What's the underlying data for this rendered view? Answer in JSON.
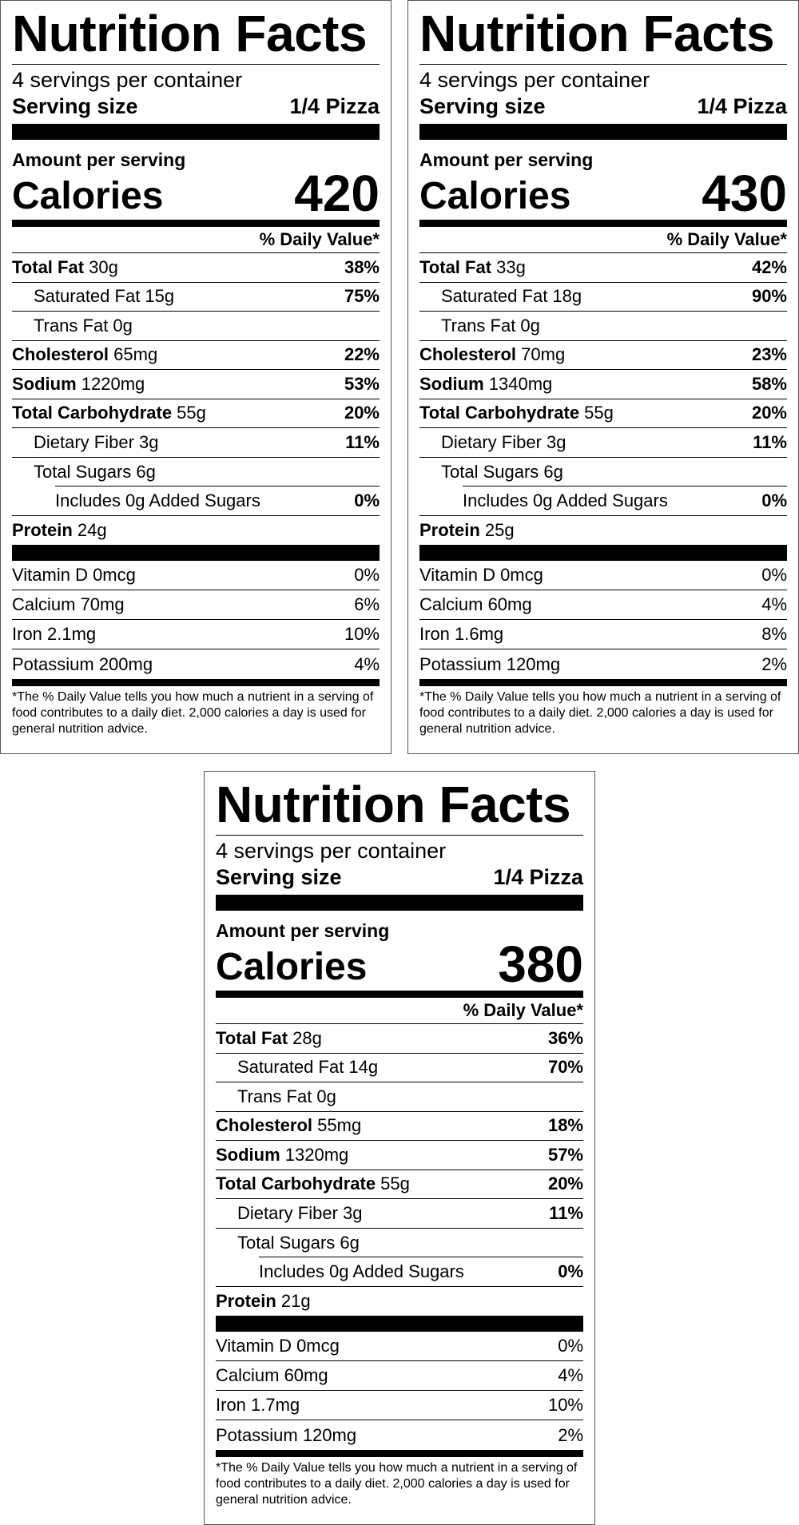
{
  "labels": [
    {
      "title": "Nutrition Facts",
      "servings_per_container": "4 servings per container",
      "serving_size_label": "Serving size",
      "serving_size_value": "1/4 Pizza",
      "amount_per_serving": "Amount per serving",
      "calories_label": "Calories",
      "calories_value": "420",
      "daily_value_header": "% Daily Value*",
      "nutrients": [
        {
          "name": "Total Fat",
          "amount": " 30g",
          "dv": "38%"
        },
        {
          "name": "Saturated Fat 15g",
          "dv": "75%"
        },
        {
          "name": "Trans Fat 0g",
          "dv": ""
        },
        {
          "name": "Cholesterol",
          "amount": " 65mg",
          "dv": "22%"
        },
        {
          "name": "Sodium",
          "amount": " 1220mg",
          "dv": "53%"
        },
        {
          "name": "Total Carbohydrate",
          "amount": " 55g",
          "dv": "20%"
        },
        {
          "name": "Dietary Fiber 3g",
          "dv": "11%"
        },
        {
          "name": "Total Sugars 6g",
          "dv": ""
        },
        {
          "name": "Includes 0g Added Sugars",
          "dv": "0%"
        },
        {
          "name": "Protein",
          "amount": " 24g",
          "dv": ""
        }
      ],
      "vitamins": [
        {
          "name": "Vitamin D 0mcg",
          "dv": "0%"
        },
        {
          "name": "Calcium 70mg",
          "dv": "6%"
        },
        {
          "name": "Iron 2.1mg",
          "dv": "10%"
        },
        {
          "name": "Potassium 200mg",
          "dv": "4%"
        }
      ],
      "footnote": "*The % Daily Value tells you how much a nutrient in a serving of food contributes to a daily diet. 2,000 calories a day is used for general nutrition advice."
    },
    {
      "title": "Nutrition Facts",
      "servings_per_container": "4 servings per container",
      "serving_size_label": "Serving size",
      "serving_size_value": "1/4 Pizza",
      "amount_per_serving": "Amount per serving",
      "calories_label": "Calories",
      "calories_value": "430",
      "daily_value_header": "% Daily Value*",
      "nutrients": [
        {
          "name": "Total Fat",
          "amount": " 33g",
          "dv": "42%"
        },
        {
          "name": "Saturated Fat 18g",
          "dv": "90%"
        },
        {
          "name": "Trans Fat 0g",
          "dv": ""
        },
        {
          "name": "Cholesterol",
          "amount": " 70mg",
          "dv": "23%"
        },
        {
          "name": "Sodium",
          "amount": " 1340mg",
          "dv": "58%"
        },
        {
          "name": "Total Carbohydrate",
          "amount": " 55g",
          "dv": "20%"
        },
        {
          "name": "Dietary Fiber 3g",
          "dv": "11%"
        },
        {
          "name": "Total Sugars 6g",
          "dv": ""
        },
        {
          "name": "Includes 0g Added Sugars",
          "dv": "0%"
        },
        {
          "name": "Protein",
          "amount": " 25g",
          "dv": ""
        }
      ],
      "vitamins": [
        {
          "name": "Vitamin D 0mcg",
          "dv": "0%"
        },
        {
          "name": "Calcium 60mg",
          "dv": "4%"
        },
        {
          "name": "Iron 1.6mg",
          "dv": "8%"
        },
        {
          "name": "Potassium 120mg",
          "dv": "2%"
        }
      ],
      "footnote": "*The % Daily Value tells you how much a nutrient in a serving of food contributes to a daily diet. 2,000 calories a day is used for general nutrition advice."
    },
    {
      "title": "Nutrition Facts",
      "servings_per_container": "4 servings per container",
      "serving_size_label": "Serving size",
      "serving_size_value": "1/4 Pizza",
      "amount_per_serving": "Amount per serving",
      "calories_label": "Calories",
      "calories_value": "380",
      "daily_value_header": "% Daily Value*",
      "nutrients": [
        {
          "name": "Total Fat",
          "amount": " 28g",
          "dv": "36%"
        },
        {
          "name": "Saturated Fat 14g",
          "dv": "70%"
        },
        {
          "name": "Trans Fat 0g",
          "dv": ""
        },
        {
          "name": "Cholesterol",
          "amount": " 55mg",
          "dv": "18%"
        },
        {
          "name": "Sodium",
          "amount": " 1320mg",
          "dv": "57%"
        },
        {
          "name": "Total Carbohydrate",
          "amount": " 55g",
          "dv": "20%"
        },
        {
          "name": "Dietary Fiber 3g",
          "dv": "11%"
        },
        {
          "name": "Total Sugars 6g",
          "dv": ""
        },
        {
          "name": "Includes 0g Added Sugars",
          "dv": "0%"
        },
        {
          "name": "Protein",
          "amount": " 21g",
          "dv": ""
        }
      ],
      "vitamins": [
        {
          "name": "Vitamin D 0mcg",
          "dv": "0%"
        },
        {
          "name": "Calcium 60mg",
          "dv": "4%"
        },
        {
          "name": "Iron 1.7mg",
          "dv": "10%"
        },
        {
          "name": "Potassium 120mg",
          "dv": "2%"
        }
      ],
      "footnote": "*The % Daily Value tells you how much a nutrient in a serving of food contributes to a daily diet. 2,000 calories a day is used for general nutrition advice."
    }
  ]
}
